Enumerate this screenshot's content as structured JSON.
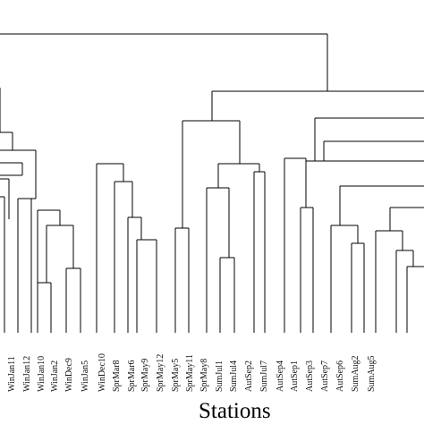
{
  "xlabel": "Stations",
  "leaves": [
    "WinJan11",
    "WinJan12",
    "WinJan10",
    "WinJan2",
    "WinDec9",
    "WinJan5",
    "WinDec10",
    "SprMar8",
    "SprMar6",
    "SprMay9",
    "SprMay12",
    "SprMay5",
    "SprMay11",
    "SprMay8",
    "SumJul1",
    "SumJul4",
    "AutSep2",
    "SumJul7",
    "AutSep4",
    "AutSep1",
    "AutSep3",
    "AutSep7",
    "AutSep6",
    "SumAug2",
    "SumAug5"
  ],
  "colors": {
    "line": "#000000",
    "label": "#111111"
  }
}
